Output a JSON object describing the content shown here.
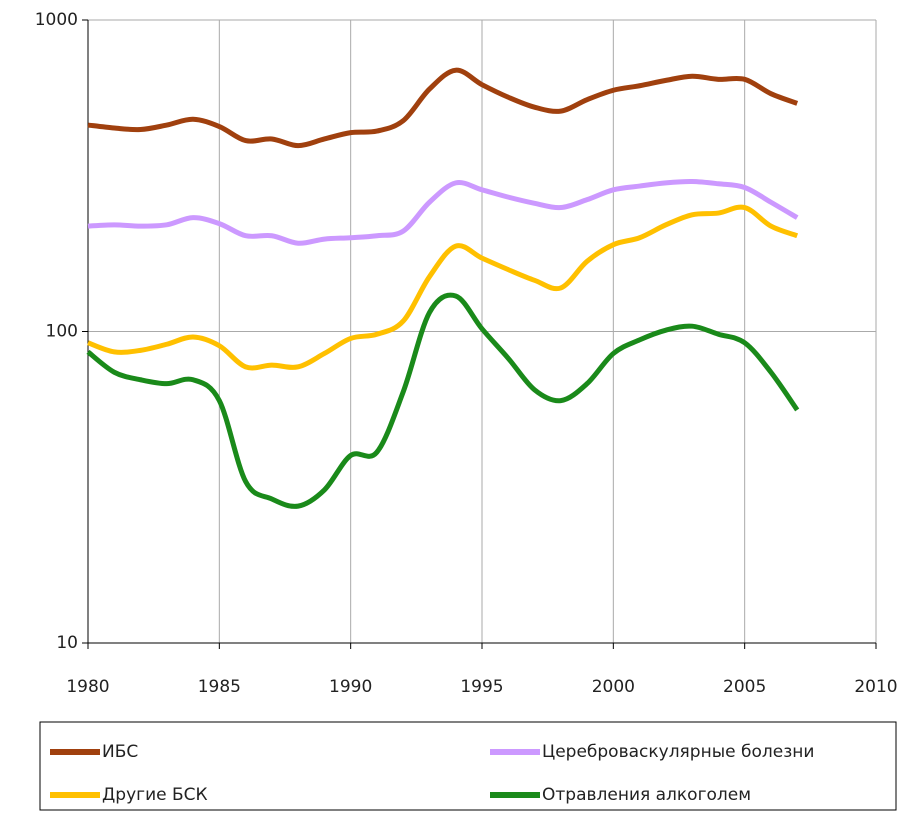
{
  "chart_data": {
    "type": "line",
    "log_y": true,
    "grid": true,
    "legend": "bottom",
    "x": [
      1980,
      1981,
      1982,
      1983,
      1984,
      1985,
      1986,
      1987,
      1988,
      1989,
      1990,
      1991,
      1992,
      1993,
      1994,
      1995,
      1996,
      1997,
      1998,
      1999,
      2000,
      2001,
      2002,
      2003,
      2004,
      2005,
      2006,
      2007
    ],
    "xlim": [
      1980,
      2010
    ],
    "xticks": [
      1980,
      1985,
      1990,
      1995,
      2000,
      2005,
      2010
    ],
    "ylim": [
      10,
      1000
    ],
    "yticks": [
      10,
      100,
      1000
    ],
    "series": [
      {
        "name": "ИБС",
        "color": "#a0400e",
        "values": [
          460,
          450,
          445,
          460,
          480,
          455,
          410,
          415,
          395,
          415,
          435,
          440,
          475,
          600,
          690,
          620,
          565,
          525,
          510,
          555,
          595,
          615,
          640,
          660,
          645,
          645,
          580,
          540
        ]
      },
      {
        "name": "Цереброваскулярные болезни",
        "color": "#cc99ff",
        "values": [
          218,
          220,
          218,
          220,
          232,
          222,
          203,
          203,
          192,
          198,
          200,
          203,
          210,
          260,
          300,
          285,
          270,
          258,
          250,
          265,
          285,
          293,
          300,
          303,
          298,
          290,
          260,
          232
        ]
      },
      {
        "name": "Другие БСК",
        "color": "#ffc000",
        "values": [
          92,
          86,
          87,
          91,
          96,
          90,
          77,
          78,
          77,
          85,
          95,
          98,
          108,
          150,
          188,
          172,
          158,
          146,
          138,
          168,
          190,
          200,
          220,
          237,
          240,
          250,
          218,
          203
        ]
      },
      {
        "name": "Отравления алкоголем",
        "color": "#1a8a1a",
        "values": [
          86,
          74,
          70,
          68,
          70,
          60,
          33,
          29,
          27.5,
          31,
          40,
          41,
          64,
          115,
          130,
          102,
          82,
          65,
          60,
          68,
          85,
          94,
          101,
          104,
          98,
          92,
          74,
          56
        ]
      }
    ]
  }
}
